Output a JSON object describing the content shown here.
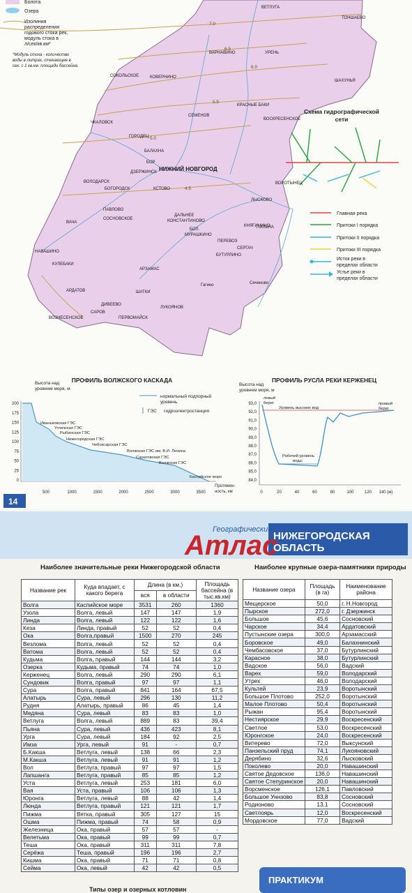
{
  "page_number": "14",
  "map": {
    "legend": [
      "Болота",
      "Озера",
      "Изолиния",
      "распределения",
      "годового стока рек,",
      "модуль стока в",
      "л/сек/кв.км*"
    ],
    "note": [
      "*Модуль стока - количество",
      "воды в литрах, стекающее в",
      "сек. с 1 кв.км. площади бассейна."
    ],
    "isolines": [
      "7.0",
      "6.5",
      "6.0",
      "5.5",
      "5.0",
      "4.5"
    ],
    "places": [
      "ВЕТЛУГА",
      "ТОНШАЕВО",
      "ВАРНАВИНО",
      "УРЕНЬ",
      "ШАХУНЬЯ",
      "КОВЕРНИНО",
      "СОКОЛЬСКОЕ",
      "КРАСНЫЕ БАКИ",
      "СЕМЕНОВ",
      "ЧКАЛОВСК",
      "ГОРОДЕЦ",
      "ВОСКРЕСЕНСКОЕ",
      "БАЛАХНА",
      "ДЗЕРЖИНСК",
      "НИЖНИЙ НОВГОРОД",
      "ВОЛОДАРСК",
      "БОР",
      "БОГОРОДСК",
      "КСТОВО",
      "ЛЫСКОВО",
      "ВОРОТЫНЕЦ",
      "ПАВЛОВО",
      "СОСНОВСКОЕ",
      "ДАЛЬНЕЕ",
      "КОНСТАНТИНОВО",
      "КНЯГИНИНО",
      "ВАЧА",
      "НАВАШИНО",
      "ПЕРЕВОЗ",
      "БУТУРЛИНО",
      "СЕРГАЧ",
      "КУЛЕБАКИ",
      "АРЗАМАС",
      "АРДАТОВ",
      "ШАТКИ",
      "ЛУКОЯНОВ",
      "ВОЗНЕСЕНСКОЕ",
      "ДИВЕЕВО",
      "САРОВ",
      "ПЕРВОМАЙСК",
      "ПИЛЬНА",
      "Гагино",
      "Сеченово",
      "БОЛ.",
      "МУРАШКИНО"
    ]
  },
  "scheme": {
    "title": [
      "Схема гидрографической",
      "сети"
    ],
    "legend": [
      "Главная река",
      "Притоки I порядка",
      "Притоки II порядка",
      "Притоки III порядка",
      "Исток реки в",
      "пределах области",
      "Устье реки в",
      "пределах области"
    ]
  },
  "volga_profile": {
    "title": "ПРОФИЛЬ ВОЛЖСКОГО КАСКАДА",
    "y_label": [
      "Высота над",
      "уровнем моря, м"
    ],
    "x_label": [
      "Протяжен-",
      "ность, км"
    ],
    "yticks": [
      "200",
      "175",
      "150",
      "125",
      "100",
      "75",
      "50",
      "25",
      "0"
    ],
    "xticks": [
      "500",
      "1000",
      "1500",
      "2000",
      "2500",
      "3000",
      "3500"
    ],
    "legend": [
      "нормальный подпорный",
      "уровень",
      "ГЭС",
      "гидроэлектростанция"
    ],
    "stations": [
      "Иваньковская ГЭС",
      "Угличская ГЭС",
      "Рыбинская ГЭС",
      "Нижегородская ГЭС",
      "Чебоксарская ГЭС",
      "Волжская ГЭС им. В.И. Ленина",
      "Саратовская ГЭС",
      "Волжская ГЭС",
      "Каспийское море"
    ]
  },
  "kerzhenets_profile": {
    "title": "ПРОФИЛЬ РУСЛА РЕКИ КЕРЖЕНЕЦ",
    "y_label": [
      "Высота над",
      "уровнем моря, м"
    ],
    "yticks": [
      "93,0",
      "92,0",
      "91,0",
      "90,0",
      "89,0",
      "88,0",
      "87,0",
      "86,0",
      "85,0",
      "84,0"
    ],
    "xticks": [
      "0",
      "20",
      "40",
      "60",
      "80",
      "100",
      "120",
      "140 (м)"
    ],
    "labels": [
      "левый",
      "берег",
      "правый",
      "берег",
      "Уровень высоких вод",
      "Рабочий уровень",
      "воды"
    ]
  },
  "header": {
    "small": "Географический",
    "big": "Атлас",
    "region": [
      "НИЖЕГОРОДСКАЯ",
      "ОБЛАСТЬ"
    ]
  },
  "rivers": {
    "title": "Наиболее значительные реки Нижегородской области",
    "headers": [
      "Название рек",
      "Куда впадает, с какого берега",
      "Длина (в км.)",
      "вся",
      "в области",
      "Площадь бассейна (в тыс.кв.км)"
    ],
    "rows": [
      [
        "Волга",
        "Каспийское море",
        "3531",
        "260",
        "1360"
      ],
      [
        "Узола",
        "Волга, левый",
        "147",
        "147",
        "1,9"
      ],
      [
        "Линда",
        "Волга, левый",
        "122",
        "122",
        "1,6"
      ],
      [
        "Кеза",
        "Линда, правый",
        "52",
        "52",
        "0,4"
      ],
      [
        "Ока",
        "Волга,правый",
        "1500",
        "270",
        "245"
      ],
      [
        "Везлома",
        "Волга, левый",
        "52",
        "52",
        "0,4"
      ],
      [
        "Ватома",
        "Волга, левый",
        "52",
        "52",
        "0,4"
      ],
      [
        "Кудьма",
        "Волга, правый",
        "144",
        "144",
        "3,2"
      ],
      [
        "Озерка",
        "Кудьма, правый",
        "74",
        "74",
        "1,0"
      ],
      [
        "Керженец",
        "Волга, левый",
        "290",
        "290",
        "6,1"
      ],
      [
        "Сундовик",
        "Волга, правый",
        "97",
        "97",
        "1,1"
      ],
      [
        "Сура",
        "Волга, правый",
        "841",
        "164",
        "67,5"
      ],
      [
        "Алатырь",
        "Сура, левый",
        "296",
        "130",
        "11,2"
      ],
      [
        "Рудня",
        "Алатырь, правый",
        "86",
        "45",
        "1,4"
      ],
      [
        "Медяна",
        "Сура, левый",
        "83",
        "83",
        "1,0"
      ],
      [
        "Ветлуга",
        "Волга, левый",
        "889",
        "83",
        "39,4"
      ],
      [
        "Пьяна",
        "Сура, левый",
        "436",
        "423",
        "8,1"
      ],
      [
        "Урга",
        "Сура, левый",
        "184",
        "92",
        "2,5"
      ],
      [
        "Имза",
        "Урга, левый",
        "91",
        "-",
        "0,7"
      ],
      [
        "Б.Какша",
        "Ветлуга, левый",
        "138",
        "66",
        "2,3"
      ],
      [
        "М.Какша",
        "Ветлуга, левый",
        "91",
        "91",
        "1,2"
      ],
      [
        "Вол",
        "Ветлуга, правый",
        "97",
        "97",
        "1,5"
      ],
      [
        "Лапшанга",
        "Ветлуга, правый",
        "85",
        "85",
        "1,2"
      ],
      [
        "Уста",
        "Ветлуга, левый",
        "253",
        "181",
        "6,0"
      ],
      [
        "Вая",
        "Уста, правый",
        "106",
        "106",
        "1,3"
      ],
      [
        "Юронга",
        "Ветлуга, левый",
        "88",
        "42",
        "1,4"
      ],
      [
        "Люнда",
        "Ветлуга, правый",
        "121",
        "121",
        "1,7"
      ],
      [
        "Пижма",
        "Вятка, правый",
        "305",
        "127",
        "15"
      ],
      [
        "Ошма",
        "Пижма, правый",
        "74",
        "58",
        "0,9"
      ],
      [
        "Железница",
        "Ока, правый",
        "57",
        "57",
        "-"
      ],
      [
        "Велетьма",
        "Ока, правый",
        "99",
        "99",
        "0,7"
      ],
      [
        "Теша",
        "Ока, правый",
        "311",
        "311",
        "7,8"
      ],
      [
        "Серёжа",
        "Теша, правый",
        "196",
        "196",
        "2,7"
      ],
      [
        "Кишма",
        "Ока, правый",
        "71",
        "71",
        "0,8"
      ],
      [
        "Сейма",
        "Ока, левый",
        "42",
        "42",
        "0,5"
      ]
    ]
  },
  "lakes": {
    "title": "Наиболее крупные озера-памятники природы",
    "headers": [
      "Название озера",
      "Площадь (в га)",
      "Наименование района"
    ],
    "rows": [
      [
        "Мещерское",
        "50,0",
        "г. Н.Новгород"
      ],
      [
        "Пырское",
        "272,0",
        "г. Дзержинск"
      ],
      [
        "Большое",
        "45,6",
        "Сосновский"
      ],
      [
        "Чарское",
        "34,4",
        "Ардатовский"
      ],
      [
        "Пустынские озера",
        "300,0",
        "Арзамасский"
      ],
      [
        "Боровское",
        "49,0",
        "Балахнинский"
      ],
      [
        "Чембасовское",
        "37,0",
        "Бутурлинский"
      ],
      [
        "Карасное",
        "38,0",
        "Бутурлинский"
      ],
      [
        "Вадское",
        "56,0",
        "Вадский"
      ],
      [
        "Варех",
        "59,0",
        "Володарский"
      ],
      [
        "Утрех",
        "46,0",
        "Володарский"
      ],
      [
        "Культей",
        "23,9",
        "Воротынский"
      ],
      [
        "Большое Плотово",
        "252,0",
        "Воротынский"
      ],
      [
        "Малое Плотово",
        "50,4",
        "Воротынский"
      ],
      [
        "Рыжан",
        "95,4",
        "Воротынский"
      ],
      [
        "Нестиярское",
        "29,9",
        "Воскресенский"
      ],
      [
        "Светлое",
        "53,0",
        "Воскресенский"
      ],
      [
        "Юронгское",
        "24,0",
        "Воскресенский"
      ],
      [
        "Витерево",
        "72,0",
        "Выксунский"
      ],
      [
        "Панзельский пруд",
        "74,1",
        "Лукояновский"
      ],
      [
        "Дерябино",
        "32,6",
        "Лысковский"
      ],
      [
        "Поколево",
        "20,0",
        "Навашинский"
      ],
      [
        "Святое Дедовское",
        "136,0",
        "Навашинский"
      ],
      [
        "Святое Степуринское",
        "20,0",
        "Навашинский"
      ],
      [
        "Ворсменское",
        "126,1",
        "Павловский"
      ],
      [
        "Большое Уннзово",
        "83,8",
        "Сосновский"
      ],
      [
        "Родионово",
        "13,1",
        "Сосновский"
      ],
      [
        "Светлоярь",
        "12,0",
        "Воскресенский"
      ],
      [
        "Мордовское",
        "77,0",
        "Вадский"
      ]
    ]
  },
  "footer": {
    "lake_types": "Типы озер и озерных котловин",
    "practicum": "ПРАКТИКУМ"
  }
}
